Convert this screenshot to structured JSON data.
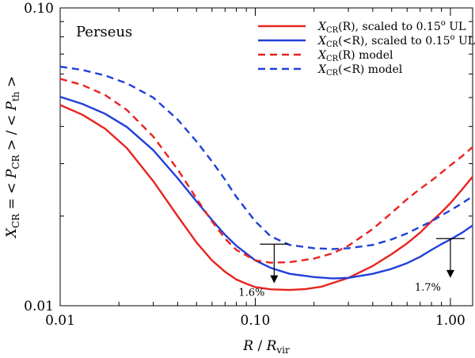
{
  "chart_data": {
    "type": "line",
    "title": "Perseus",
    "xlabel": "R / R_vir",
    "ylabel": "X_CR = < P_CR > / < P_th >",
    "xscale": "log",
    "yscale": "log",
    "xlim": [
      0.01,
      1.3
    ],
    "ylim": [
      0.01,
      0.1
    ],
    "x_ticks": [
      {
        "value": 0.01,
        "label": "0.01"
      },
      {
        "value": 0.1,
        "label": "0.10"
      },
      {
        "value": 1.0,
        "label": "1.00"
      }
    ],
    "y_ticks": [
      {
        "value": 0.01,
        "label": "0.01"
      },
      {
        "value": 0.1,
        "label": "0.10"
      }
    ],
    "legend": {
      "position": "top-right",
      "entries": [
        {
          "label_main": "X",
          "label_sub": "CR",
          "label_rest": "(R),   scaled to 0.15",
          "label_sup": "o",
          "label_end": " UL",
          "color": "#e8231f",
          "dash": "solid"
        },
        {
          "label_main": "X",
          "label_sub": "CR",
          "label_rest": "(<R), scaled to 0.15",
          "label_sup": "o",
          "label_end": " UL",
          "color": "#2040d8",
          "dash": "solid"
        },
        {
          "label_main": "X",
          "label_sub": "CR",
          "label_rest": "(R) model",
          "label_sup": "",
          "label_end": "",
          "color": "#e8231f",
          "dash": "dashed"
        },
        {
          "label_main": "X",
          "label_sub": "CR",
          "label_rest": "(<R)  model",
          "label_sup": "",
          "label_end": "",
          "color": "#2040d8",
          "dash": "dashed"
        }
      ]
    },
    "series": [
      {
        "name": "X_CR(R), scaled to 0.15° UL",
        "color": "#e8231f",
        "dash": "solid",
        "x": [
          0.01,
          0.013,
          0.017,
          0.022,
          0.03,
          0.04,
          0.05,
          0.06,
          0.07,
          0.08,
          0.09,
          0.1,
          0.12,
          0.15,
          0.18,
          0.22,
          0.3,
          0.4,
          0.5,
          0.6,
          0.7,
          0.8,
          0.9,
          1.0,
          1.15,
          1.3
        ],
        "y": [
          0.0472,
          0.0438,
          0.0393,
          0.0338,
          0.0262,
          0.02,
          0.0163,
          0.0142,
          0.013,
          0.01225,
          0.01185,
          0.01155,
          0.01135,
          0.0113,
          0.01137,
          0.0116,
          0.0124,
          0.0136,
          0.0149,
          0.0162,
          0.0176,
          0.0192,
          0.0206,
          0.0221,
          0.0246,
          0.0271
        ]
      },
      {
        "name": "X_CR(<R), scaled to 0.15° UL",
        "color": "#2040d8",
        "dash": "solid",
        "x": [
          0.01,
          0.013,
          0.017,
          0.022,
          0.03,
          0.04,
          0.05,
          0.06,
          0.07,
          0.08,
          0.1,
          0.12,
          0.15,
          0.2,
          0.25,
          0.3,
          0.4,
          0.5,
          0.6,
          0.7,
          0.8,
          0.9,
          1.0,
          1.15,
          1.3
        ],
        "y": [
          0.0503,
          0.0476,
          0.0441,
          0.0398,
          0.0333,
          0.0268,
          0.0224,
          0.0194,
          0.0173,
          0.0159,
          0.0142,
          0.0134,
          0.0128,
          0.01248,
          0.01235,
          0.0124,
          0.0128,
          0.0133,
          0.0139,
          0.0146,
          0.0154,
          0.0161,
          0.0167,
          0.0176,
          0.0186
        ]
      },
      {
        "name": "X_CR(R) model",
        "color": "#e8231f",
        "dash": "dashed",
        "x": [
          0.01,
          0.013,
          0.017,
          0.022,
          0.03,
          0.04,
          0.05,
          0.06,
          0.07,
          0.08,
          0.1,
          0.12,
          0.15,
          0.2,
          0.25,
          0.3,
          0.4,
          0.5,
          0.6,
          0.7,
          0.8,
          0.9,
          1.0,
          1.15,
          1.3
        ],
        "y": [
          0.0578,
          0.0551,
          0.051,
          0.0454,
          0.037,
          0.0287,
          0.0229,
          0.0192,
          0.0168,
          0.0154,
          0.0142,
          0.01395,
          0.014,
          0.0144,
          0.015,
          0.0159,
          0.0181,
          0.0205,
          0.0228,
          0.0247,
          0.0263,
          0.028,
          0.0296,
          0.0318,
          0.0341
        ]
      },
      {
        "name": "X_CR(<R) model",
        "color": "#2040d8",
        "dash": "dashed",
        "x": [
          0.01,
          0.013,
          0.017,
          0.022,
          0.03,
          0.04,
          0.05,
          0.06,
          0.07,
          0.08,
          0.1,
          0.12,
          0.15,
          0.2,
          0.25,
          0.3,
          0.4,
          0.5,
          0.6,
          0.7,
          0.8,
          0.9,
          1.0,
          1.15,
          1.3
        ],
        "y": [
          0.0635,
          0.0619,
          0.0593,
          0.0558,
          0.05,
          0.0422,
          0.0356,
          0.0305,
          0.0265,
          0.0232,
          0.0192,
          0.0171,
          0.016,
          0.0156,
          0.0155,
          0.0156,
          0.016,
          0.0167,
          0.0175,
          0.0184,
          0.0192,
          0.0201,
          0.0209,
          0.0221,
          0.0233
        ]
      }
    ],
    "annotations": [
      {
        "type": "upper_limit",
        "x": 0.125,
        "y": 0.0161,
        "y_end": 0.0119,
        "label": "1.6%"
      },
      {
        "type": "upper_limit",
        "x": 1.0,
        "y": 0.0168,
        "y_end": 0.0124,
        "label": "1.7%"
      }
    ]
  }
}
